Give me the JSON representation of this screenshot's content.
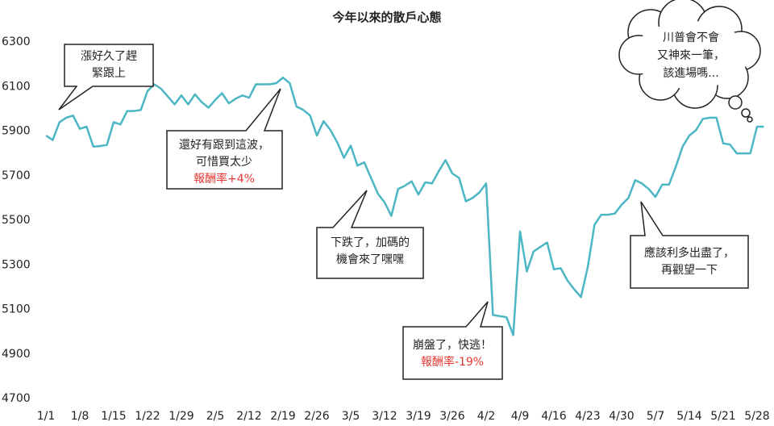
{
  "chart_data": {
    "type": "line",
    "title": "今年以來的散戶心態",
    "categories": [
      "1/1",
      null,
      null,
      null,
      null,
      "1/8",
      null,
      null,
      null,
      null,
      "1/15",
      null,
      null,
      null,
      null,
      "1/22",
      null,
      null,
      null,
      null,
      "1/29",
      null,
      null,
      null,
      null,
      "2/5",
      null,
      null,
      null,
      null,
      "2/12",
      null,
      null,
      null,
      null,
      "2/19",
      null,
      null,
      null,
      null,
      "2/26",
      null,
      null,
      null,
      null,
      "3/5",
      null,
      null,
      null,
      null,
      "3/12",
      null,
      null,
      null,
      null,
      "3/19",
      null,
      null,
      null,
      null,
      "3/26",
      null,
      null,
      null,
      null,
      "4/2",
      null,
      null,
      null,
      null,
      "4/9",
      null,
      null,
      null,
      null,
      "4/16",
      null,
      null,
      null,
      null,
      "4/23",
      null,
      null,
      null,
      null,
      "4/30",
      null,
      null,
      null,
      null,
      "5/7",
      null,
      null,
      null,
      null,
      "5/14",
      null,
      null,
      null,
      null,
      "5/21",
      null,
      null,
      null,
      null,
      "5/28",
      null
    ],
    "values": [
      5880,
      5860,
      5940,
      5960,
      5970,
      5910,
      5920,
      5830,
      5833,
      5838,
      5940,
      5930,
      5990,
      5990,
      5995,
      6080,
      6110,
      6090,
      6055,
      6020,
      6060,
      6020,
      6065,
      6030,
      6005,
      6040,
      6070,
      6025,
      6045,
      6060,
      6050,
      6110,
      6110,
      6110,
      6115,
      6140,
      6115,
      6010,
      5995,
      5970,
      5880,
      5945,
      5905,
      5850,
      5780,
      5835,
      5745,
      5760,
      5690,
      5620,
      5580,
      5520,
      5640,
      5655,
      5675,
      5615,
      5670,
      5665,
      5720,
      5770,
      5710,
      5690,
      5585,
      5600,
      5625,
      5665,
      5075,
      5070,
      5065,
      4985,
      5450,
      5270,
      5360,
      5380,
      5400,
      5280,
      5285,
      5230,
      5190,
      5155,
      5290,
      5480,
      5525,
      5525,
      5530,
      5570,
      5600,
      5680,
      5665,
      5640,
      5605,
      5660,
      5660,
      5740,
      5830,
      5880,
      5905,
      5955,
      5960,
      5960,
      5845,
      5840,
      5800,
      5800,
      5800,
      5920,
      5920
    ],
    "color": "#4db6c4",
    "ylim": [
      4700,
      6300
    ],
    "yticks": [
      4700,
      4900,
      5100,
      5300,
      5500,
      5700,
      5900,
      6100,
      6300
    ],
    "grid": false,
    "highlight_color": "#e53935",
    "annotations": [
      {
        "lines": [
          "漲好久了趕",
          "緊跟上"
        ]
      },
      {
        "lines": [
          "還好有跟到這波，",
          "可惜買太少"
        ],
        "highlight": "報酬率+4%"
      },
      {
        "lines": [
          "下跌了，加碼的",
          "機會來了嘿嘿"
        ]
      },
      {
        "lines": [
          "崩盤了，快逃！"
        ],
        "highlight": "報酬率-19%"
      },
      {
        "lines": [
          "應該利多出盡了，",
          "再觀望一下"
        ]
      },
      {
        "lines": [
          "川普會不會",
          "又神來一筆，",
          "該進場嗎..."
        ]
      }
    ]
  }
}
